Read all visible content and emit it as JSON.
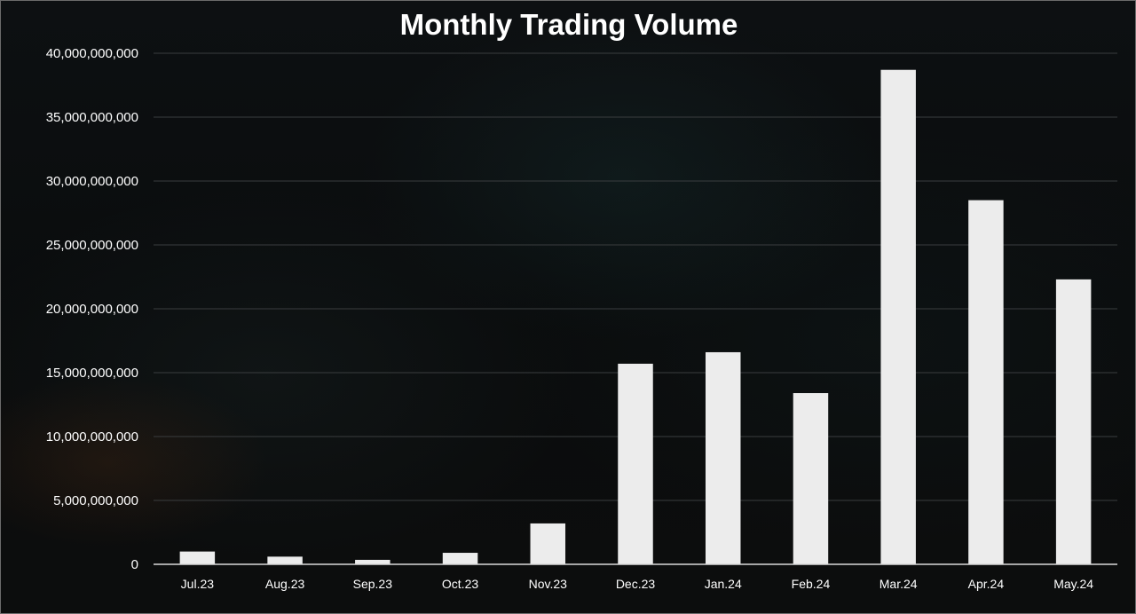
{
  "chart_data": {
    "type": "bar",
    "title": "Monthly Trading Volume",
    "xlabel": "",
    "ylabel": "",
    "categories": [
      "Jul.23",
      "Aug.23",
      "Sep.23",
      "Oct.23",
      "Nov.23",
      "Dec.23",
      "Jan.24",
      "Feb.24",
      "Mar.24",
      "Apr.24",
      "May.24"
    ],
    "values": [
      1000000000,
      600000000,
      350000000,
      900000000,
      3200000000,
      15700000000,
      16600000000,
      13400000000,
      38700000000,
      28500000000,
      22300000000
    ],
    "ylim": [
      0,
      40000000000
    ],
    "yticks": [
      0,
      5000000000,
      10000000000,
      15000000000,
      20000000000,
      25000000000,
      30000000000,
      35000000000,
      40000000000
    ],
    "ytick_labels": [
      "0",
      "5,000,000,000",
      "10,000,000,000",
      "15,000,000,000",
      "20,000,000,000",
      "25,000,000,000",
      "30,000,000,000",
      "35,000,000,000",
      "40,000,000,000"
    ],
    "grid": true,
    "legend": "none",
    "colors": {
      "bar": "#ececec",
      "grid": "#3a3d3f",
      "axis": "#d9d9d9",
      "text": "#ffffff"
    }
  }
}
